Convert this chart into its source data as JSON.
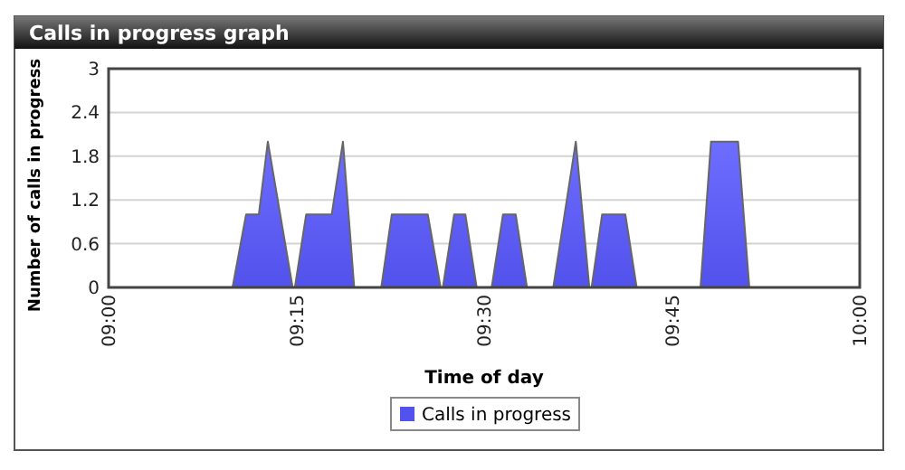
{
  "chart_data": {
    "type": "area",
    "title": "Calls in progress graph",
    "xlabel": "Time of day",
    "ylabel": "Number of calls in progress",
    "x": [
      9,
      9.165,
      9.183,
      9.2,
      9.212,
      9.245,
      9.248,
      9.263,
      9.297,
      9.312,
      9.327,
      9.363,
      9.377,
      9.425,
      9.442,
      9.445,
      9.46,
      9.475,
      9.49,
      9.51,
      9.525,
      9.542,
      9.557,
      9.592,
      9.622,
      9.64,
      9.643,
      9.657,
      9.688,
      9.703,
      9.788,
      9.802,
      9.838,
      9.853,
      10
    ],
    "series": [
      {
        "name": "Calls in progress",
        "color": "#5252ec",
        "values": [
          0,
          0,
          1,
          1,
          2,
          0,
          0,
          1,
          1,
          2,
          0,
          0,
          1,
          1,
          0,
          0,
          1,
          1,
          0,
          0,
          1,
          1,
          0,
          0,
          2,
          0,
          0,
          1,
          1,
          0,
          0,
          2,
          2,
          0,
          0
        ]
      }
    ],
    "xlim": [
      9,
      10
    ],
    "xticks": [
      {
        "value": 9,
        "label": "09:00"
      },
      {
        "value": 9.25,
        "label": "09:15"
      },
      {
        "value": 9.5,
        "label": "09:30"
      },
      {
        "value": 9.75,
        "label": "09:45"
      },
      {
        "value": 10,
        "label": "10:00"
      }
    ],
    "ylim": [
      0,
      3
    ],
    "yticks": [
      0,
      0.6,
      1.2,
      1.8,
      2.4,
      3
    ],
    "grid": "y",
    "legend": "bottom"
  }
}
